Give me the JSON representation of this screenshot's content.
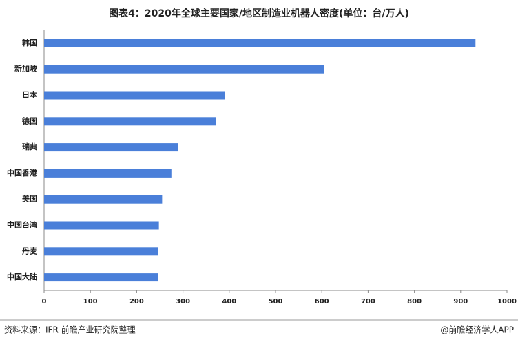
{
  "chart_data": {
    "type": "hbar",
    "title": "图表4：2020年全球主要国家/地区制造业机器人密度(单位：台/万人)",
    "categories": [
      "韩国",
      "新加坡",
      "日本",
      "德国",
      "瑞典",
      "中国香港",
      "美国",
      "中国台湾",
      "丹麦",
      "中国大陆"
    ],
    "values": [
      932,
      605,
      390,
      371,
      289,
      275,
      255,
      248,
      246,
      246
    ],
    "color": "#4a7fd9",
    "xlim": [
      0,
      1000
    ],
    "xticks": [
      0,
      100,
      200,
      300,
      400,
      500,
      600,
      700,
      800,
      900,
      1000
    ],
    "source": "资料来源：IFR 前瞻产业研究院整理",
    "credit": "@前瞻经济学人APP"
  }
}
